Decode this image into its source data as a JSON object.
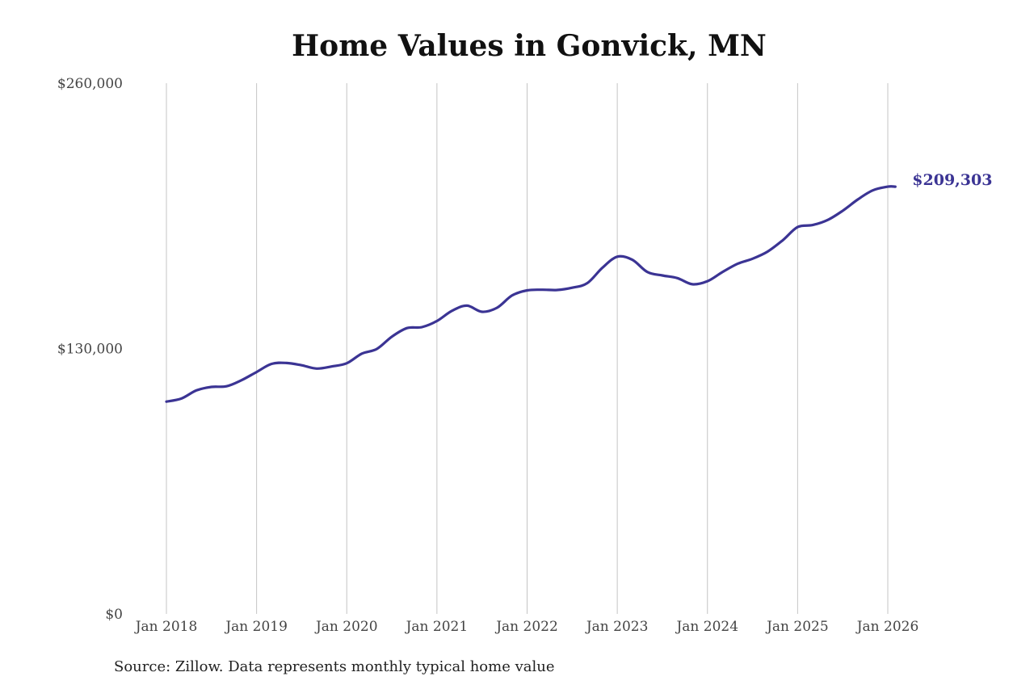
{
  "chart_data": {
    "type": "line",
    "title": "Home Values in Gonvick, MN",
    "source": "Source: Zillow. Data represents monthly typical home value",
    "xlabel": "",
    "ylabel": "",
    "x_ticks": [
      "Jan 2018",
      "Jan 2019",
      "Jan 2020",
      "Jan 2021",
      "Jan 2022",
      "Jan 2023",
      "Jan 2024",
      "Jan 2025",
      "Jan 2026"
    ],
    "y_ticks": [
      "$0",
      "$130,000",
      "$260,000"
    ],
    "y_tick_values": [
      0,
      130000,
      260000
    ],
    "ylim": [
      0,
      260000
    ],
    "xlim": [
      "2018-01",
      "2026-01"
    ],
    "grid": "vertical lines at each January",
    "line_color": "#3b3494",
    "end_label": "$209,303",
    "series": [
      {
        "x": [
          "2018-01",
          "2018-03",
          "2018-05",
          "2018-07",
          "2018-09",
          "2018-11",
          "2019-01",
          "2019-03",
          "2019-05",
          "2019-07",
          "2019-09",
          "2019-11",
          "2020-01",
          "2020-03",
          "2020-05",
          "2020-07",
          "2020-09",
          "2020-11",
          "2021-01",
          "2021-03",
          "2021-05",
          "2021-07",
          "2021-09",
          "2021-11",
          "2022-01",
          "2022-03",
          "2022-05",
          "2022-07",
          "2022-09",
          "2022-11",
          "2023-01",
          "2023-03",
          "2023-05",
          "2023-07",
          "2023-09",
          "2023-11",
          "2024-01",
          "2024-03",
          "2024-05",
          "2024-07",
          "2024-09",
          "2024-11",
          "2025-01",
          "2025-03",
          "2025-05",
          "2025-07",
          "2025-09",
          "2025-11",
          "2026-01",
          "2026-02"
        ],
        "values": [
          104000,
          105500,
          109500,
          111200,
          111500,
          114500,
          118500,
          122500,
          122900,
          121800,
          120200,
          121200,
          122800,
          127500,
          129800,
          135800,
          140000,
          140500,
          143500,
          148500,
          151000,
          148000,
          150000,
          156000,
          158500,
          158800,
          158700,
          159800,
          162000,
          169500,
          175000,
          173500,
          167500,
          165800,
          164500,
          161500,
          163000,
          167500,
          171500,
          174000,
          177500,
          183000,
          189500,
          190500,
          193000,
          197500,
          203000,
          207500,
          209303,
          209303
        ]
      }
    ]
  }
}
